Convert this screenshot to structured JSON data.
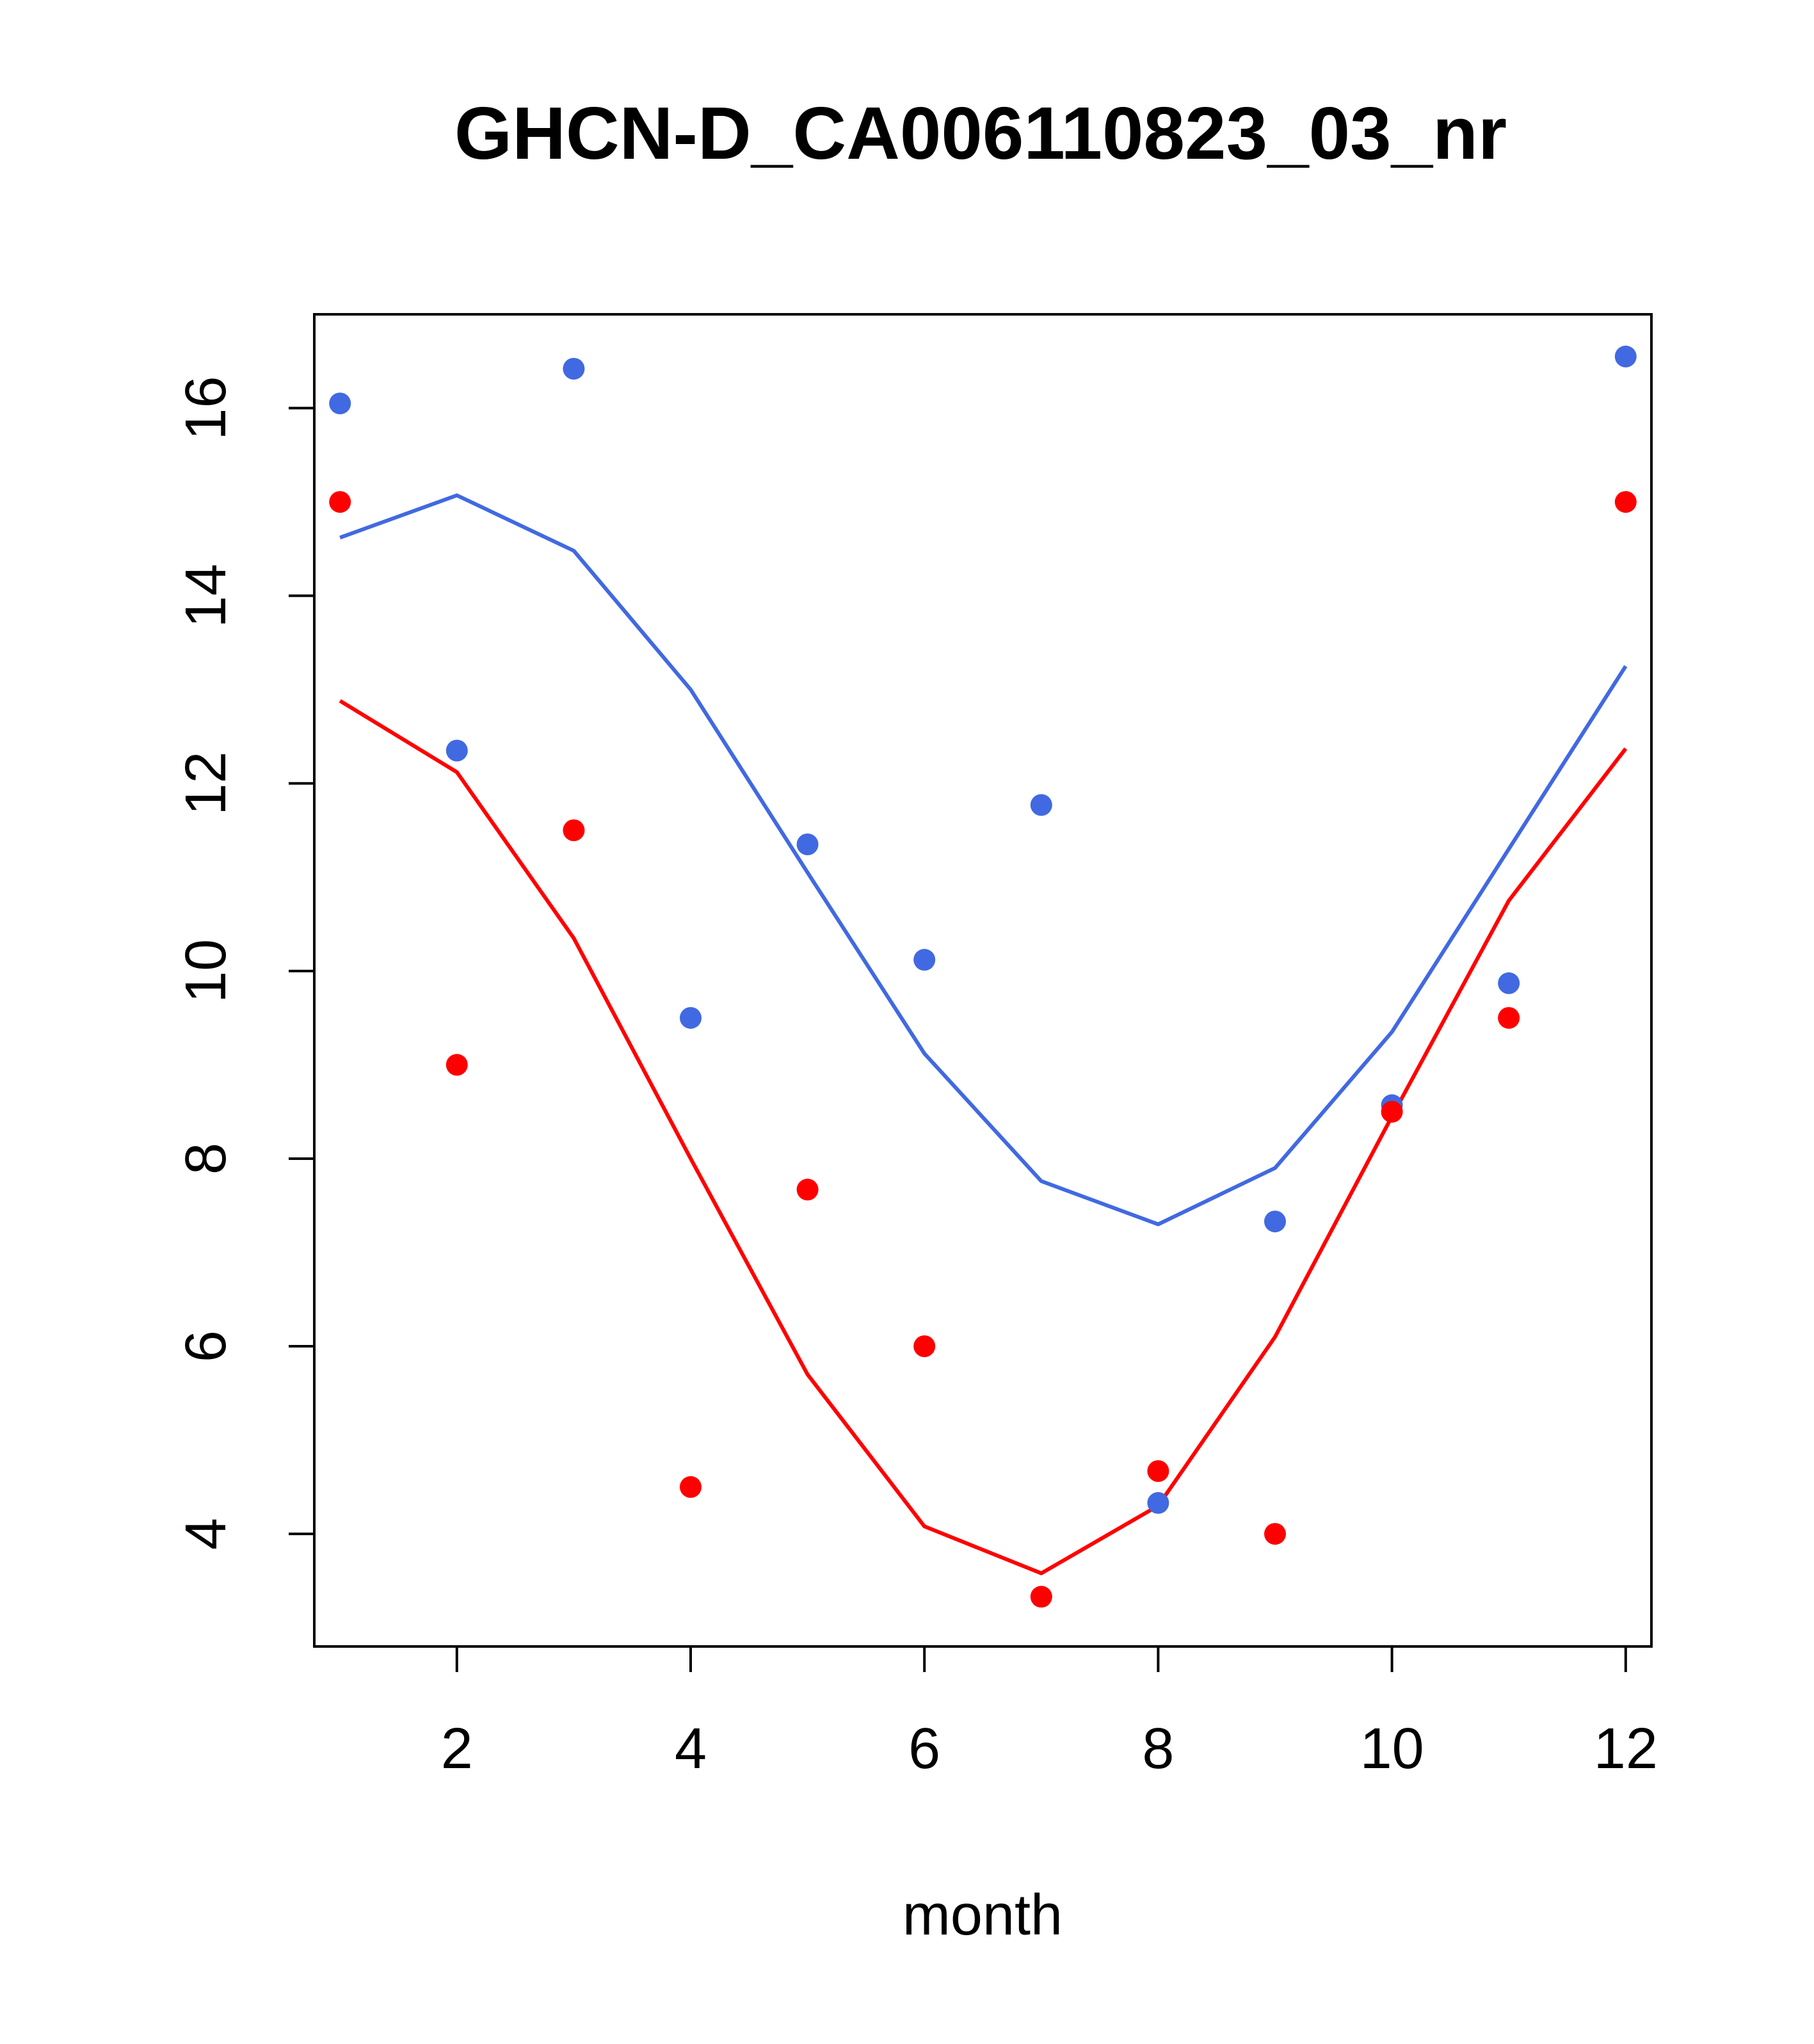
{
  "chart_data": {
    "type": "line",
    "title": "GHCN-D_CA006110823_03_nr",
    "xlabel": "month",
    "ylabel": "",
    "xlim": [
      0.78,
      12.22
    ],
    "ylim": [
      2.8,
      17.0
    ],
    "x_ticks": [
      2,
      4,
      6,
      8,
      10,
      12
    ],
    "y_ticks": [
      4,
      6,
      8,
      10,
      12,
      14,
      16
    ],
    "grid": false,
    "legend": "none",
    "x": [
      1,
      2,
      3,
      4,
      5,
      6,
      7,
      8,
      9,
      10,
      11,
      12
    ],
    "series": [
      {
        "color": "#4169E1",
        "points": [
          16.05,
          12.35,
          16.42,
          9.5,
          11.35,
          10.12,
          11.77,
          4.33,
          7.33,
          8.57,
          9.87,
          16.55
        ],
        "line": [
          14.62,
          15.07,
          14.48,
          13.0,
          11.05,
          9.12,
          7.76,
          7.3,
          7.9,
          9.35,
          11.3,
          13.25
        ]
      },
      {
        "color": "#FF0000",
        "points": [
          15.0,
          9.0,
          11.5,
          4.5,
          7.67,
          6.0,
          3.33,
          4.67,
          4.0,
          8.5,
          9.5,
          15.0
        ],
        "line": [
          12.88,
          12.12,
          10.35,
          8.0,
          5.7,
          4.08,
          3.58,
          4.3,
          6.1,
          8.45,
          10.75,
          12.37
        ]
      }
    ]
  }
}
